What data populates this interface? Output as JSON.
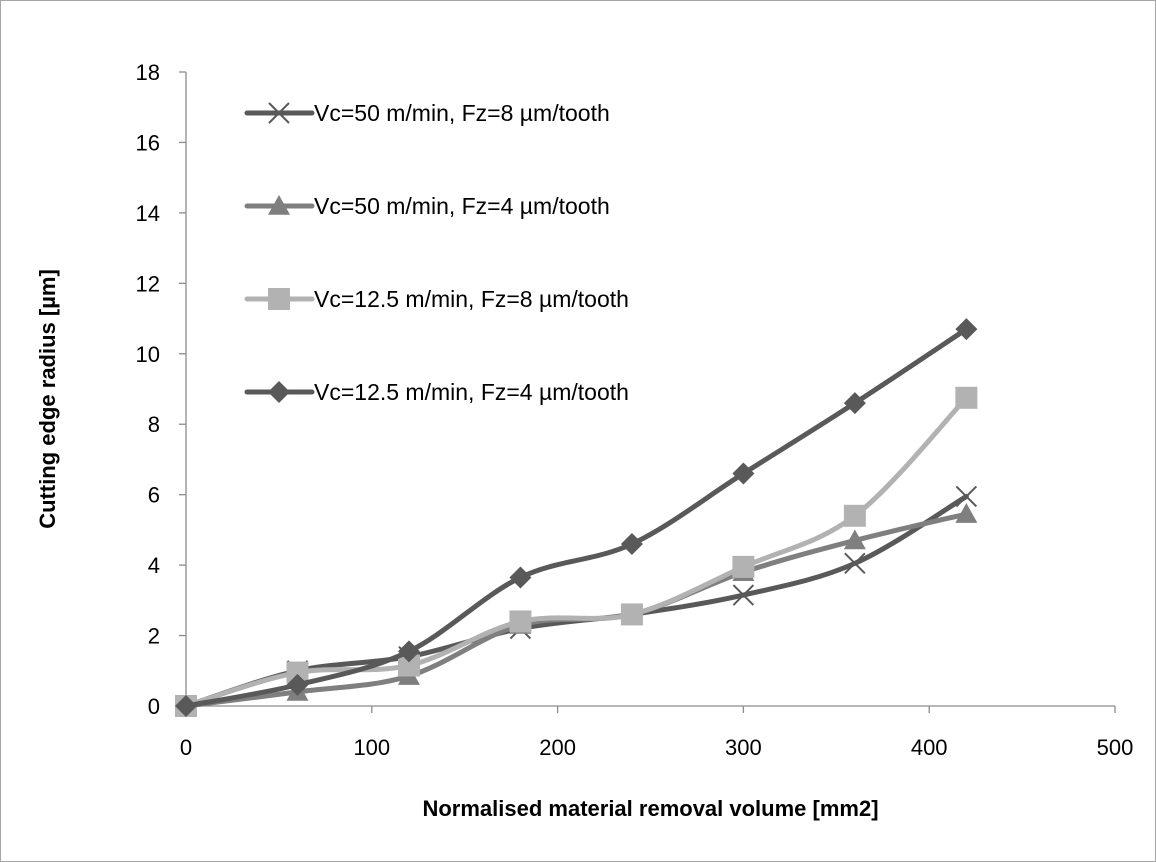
{
  "chart_data": {
    "type": "line",
    "xlabel": "Normalised material removal volume [mm2]",
    "ylabel": "Cutting edge radius [µm]",
    "xlim": [
      0,
      500
    ],
    "ylim": [
      0,
      18
    ],
    "x_ticks": [
      0,
      100,
      200,
      300,
      400,
      500
    ],
    "y_ticks": [
      0,
      2,
      4,
      6,
      8,
      10,
      12,
      14,
      16,
      18
    ],
    "grid": false,
    "legend_position": "top-left",
    "x": [
      0,
      60,
      120,
      180,
      240,
      300,
      360,
      420
    ],
    "series": [
      {
        "name": "Vc=50 m/min, Fz=8 µm/tooth",
        "marker": "x",
        "color": "#595959",
        "values": [
          0,
          1.0,
          1.4,
          2.2,
          2.6,
          3.15,
          4.05,
          5.95
        ]
      },
      {
        "name": "Vc=50 m/min, Fz=4 µm/tooth",
        "marker": "triangle",
        "color": "#7f7f7f",
        "values": [
          0,
          0.4,
          0.85,
          2.3,
          2.6,
          3.8,
          4.7,
          5.45
        ]
      },
      {
        "name": "Vc=12.5 m/min, Fz=8 µm/tooth",
        "marker": "square",
        "color": "#b2b2b2",
        "values": [
          0,
          0.95,
          1.15,
          2.4,
          2.6,
          3.95,
          5.4,
          8.75
        ]
      },
      {
        "name": "Vc=12.5 m/min, Fz=4 µm/tooth",
        "marker": "diamond",
        "color": "#595959",
        "values": [
          0,
          0.6,
          1.55,
          3.65,
          4.6,
          6.6,
          8.6,
          10.7
        ]
      }
    ]
  }
}
